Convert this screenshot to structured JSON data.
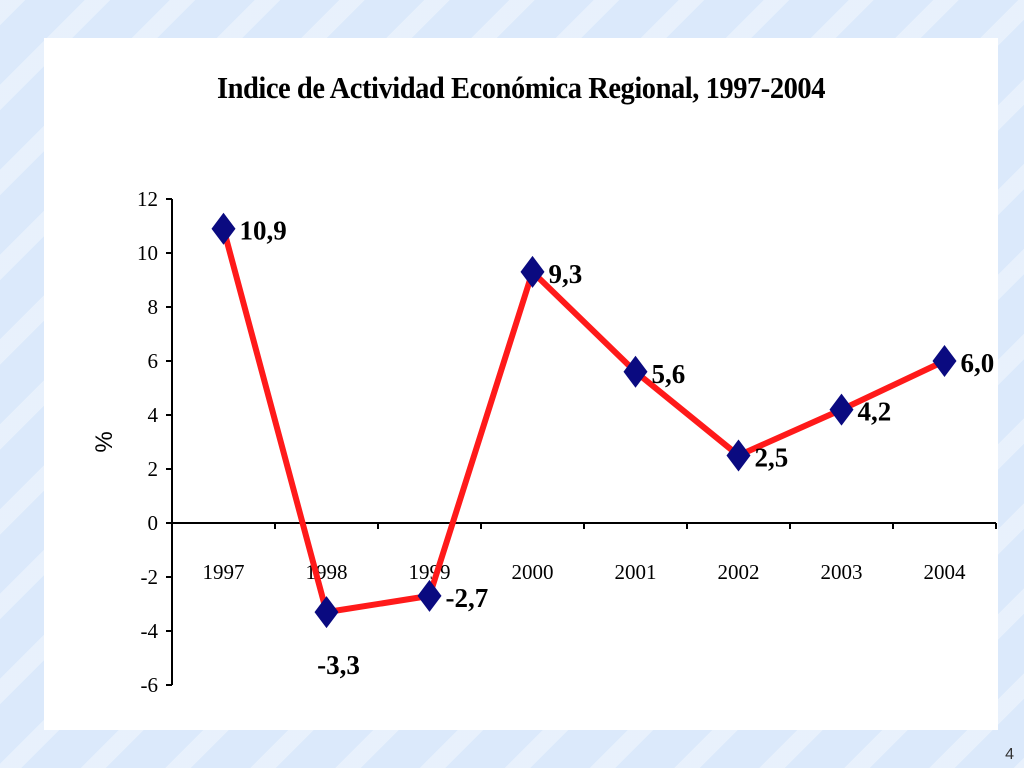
{
  "slide": {
    "page_number": "4"
  },
  "chart_data": {
    "type": "line",
    "title": "Indice de Actividad Económica Regional, 1997-2004",
    "xlabel": "",
    "ylabel": "%",
    "categories": [
      "1997",
      "1998",
      "1999",
      "2000",
      "2001",
      "2002",
      "2003",
      "2004"
    ],
    "series": [
      {
        "values": [
          10.9,
          -3.3,
          -2.7,
          9.3,
          5.6,
          2.5,
          4.2,
          6.0
        ],
        "data_labels": [
          "10,9",
          "-3,3",
          "-2,7",
          "9,3",
          "5,6",
          "2,5",
          "4,2",
          "6,0"
        ]
      }
    ],
    "ylim": [
      -6,
      12
    ],
    "yticks": [
      12,
      10,
      8,
      6,
      4,
      2,
      0,
      -2,
      -4,
      -6
    ],
    "grid": false,
    "legend": "none",
    "colors": {
      "line": "#ff1a1a",
      "marker": "#0a0a80",
      "axis": "#000000"
    }
  }
}
